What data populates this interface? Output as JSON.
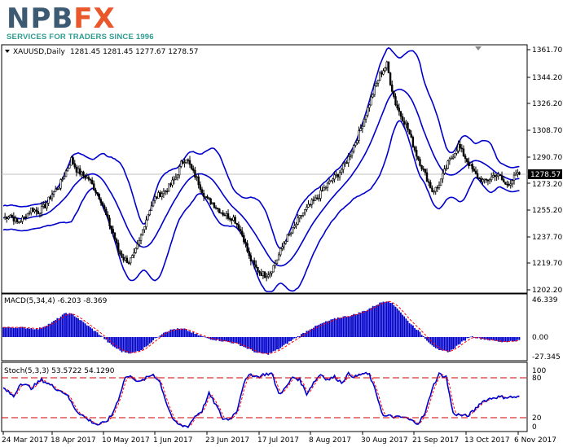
{
  "logo": {
    "brand": "NPBFX",
    "tagline": "SERVICES FOR TRADERS SINCE 1996"
  },
  "header": {
    "symbol": "XAUUSD,Daily",
    "ohlc": "1281.45 1281.45 1277.67 1278.57"
  },
  "price_axis": {
    "ticks": [
      "1361.70",
      "1344.20",
      "1326.20",
      "1308.70",
      "1290.70",
      "1273.20",
      "1255.20",
      "1237.70",
      "1219.70",
      "1202.20"
    ],
    "current": "1278.57"
  },
  "macd": {
    "label": "MACD(5,34,4) -6.203 -8.369",
    "ticks": [
      "46.339",
      "0.00",
      "-27.345"
    ]
  },
  "stoch": {
    "label": "Stoch(5,3,3) 53.5722 54.1290",
    "ticks": [
      "100",
      "80",
      "20",
      "0"
    ]
  },
  "dates": [
    "24 Mar 2017",
    "18 Apr 2017",
    "10 May 2017",
    "1 Jun 2017",
    "23 Jun 2017",
    "17 Jul 2017",
    "8 Aug 2017",
    "30 Aug 2017",
    "21 Sep 2017",
    "13 Oct 2017",
    "6 Nov 2017"
  ],
  "colors": {
    "bands": "#0000cc",
    "macd_hist": "#0000cc",
    "signal": "#ff0000",
    "candle": "#000000",
    "level_line": "#cc0000"
  },
  "chart_data": {
    "type": "candlestick",
    "price_ylim": [
      1202.2,
      1361.7
    ],
    "macd_ylim": [
      -27.345,
      46.339
    ],
    "stoch_ylim": [
      0,
      100
    ],
    "stoch_levels": [
      20,
      80
    ],
    "close_path": [
      [
        0,
        1250
      ],
      [
        4,
        1252
      ],
      [
        8,
        1247
      ],
      [
        12,
        1250
      ],
      [
        16,
        1256
      ],
      [
        20,
        1254
      ],
      [
        24,
        1258
      ],
      [
        28,
        1266
      ],
      [
        32,
        1271
      ],
      [
        36,
        1281
      ],
      [
        39,
        1289
      ],
      [
        42,
        1282
      ],
      [
        46,
        1278
      ],
      [
        49,
        1276
      ],
      [
        53,
        1268
      ],
      [
        56,
        1262
      ],
      [
        60,
        1248
      ],
      [
        63,
        1240
      ],
      [
        66,
        1228
      ],
      [
        69,
        1223
      ],
      [
        72,
        1221
      ],
      [
        75,
        1225
      ],
      [
        78,
        1234
      ],
      [
        81,
        1246
      ],
      [
        84,
        1256
      ],
      [
        87,
        1263
      ],
      [
        90,
        1266
      ],
      [
        93,
        1268
      ],
      [
        96,
        1272
      ],
      [
        99,
        1277
      ],
      [
        102,
        1286
      ],
      [
        105,
        1290
      ],
      [
        108,
        1282
      ],
      [
        111,
        1276
      ],
      [
        114,
        1268
      ],
      [
        117,
        1262
      ],
      [
        120,
        1260
      ],
      [
        123,
        1256
      ],
      [
        126,
        1253
      ],
      [
        129,
        1251
      ],
      [
        132,
        1250
      ],
      [
        135,
        1244
      ],
      [
        138,
        1236
      ],
      [
        141,
        1224
      ],
      [
        144,
        1218
      ],
      [
        147,
        1214
      ],
      [
        150,
        1212
      ],
      [
        153,
        1214
      ],
      [
        156,
        1220
      ],
      [
        159,
        1228
      ],
      [
        162,
        1236
      ],
      [
        165,
        1240
      ],
      [
        168,
        1246
      ],
      [
        171,
        1252
      ],
      [
        174,
        1256
      ],
      [
        177,
        1260
      ],
      [
        180,
        1263
      ],
      [
        183,
        1268
      ],
      [
        186,
        1272
      ],
      [
        189,
        1276
      ],
      [
        192,
        1279
      ],
      [
        195,
        1284
      ],
      [
        198,
        1290
      ],
      [
        201,
        1298
      ],
      [
        204,
        1306
      ],
      [
        207,
        1316
      ],
      [
        210,
        1326
      ],
      [
        213,
        1336
      ],
      [
        216,
        1345
      ],
      [
        219,
        1350
      ],
      [
        220,
        1352
      ],
      [
        222,
        1340
      ],
      [
        225,
        1326
      ],
      [
        228,
        1318
      ],
      [
        231,
        1312
      ],
      [
        234,
        1302
      ],
      [
        237,
        1292
      ],
      [
        240,
        1284
      ],
      [
        243,
        1276
      ],
      [
        246,
        1268
      ],
      [
        249,
        1270
      ],
      [
        252,
        1278
      ],
      [
        255,
        1286
      ],
      [
        258,
        1292
      ],
      [
        261,
        1298
      ],
      [
        264,
        1292
      ],
      [
        267,
        1286
      ],
      [
        270,
        1280
      ],
      [
        273,
        1276
      ],
      [
        276,
        1274
      ],
      [
        279,
        1276
      ],
      [
        282,
        1279
      ],
      [
        285,
        1277
      ],
      [
        288,
        1272
      ],
      [
        291,
        1274
      ],
      [
        294,
        1278
      ],
      [
        296,
        1279
      ]
    ],
    "macd_hist_path": [
      [
        0,
        12
      ],
      [
        10,
        12
      ],
      [
        20,
        10
      ],
      [
        28,
        18
      ],
      [
        36,
        30
      ],
      [
        40,
        28
      ],
      [
        48,
        15
      ],
      [
        56,
        2
      ],
      [
        62,
        -10
      ],
      [
        68,
        -18
      ],
      [
        74,
        -20
      ],
      [
        80,
        -15
      ],
      [
        86,
        -4
      ],
      [
        92,
        6
      ],
      [
        98,
        10
      ],
      [
        104,
        10
      ],
      [
        110,
        4
      ],
      [
        118,
        -2
      ],
      [
        126,
        -5
      ],
      [
        134,
        -8
      ],
      [
        140,
        -14
      ],
      [
        146,
        -20
      ],
      [
        152,
        -21
      ],
      [
        158,
        -15
      ],
      [
        164,
        -6
      ],
      [
        170,
        2
      ],
      [
        176,
        10
      ],
      [
        184,
        18
      ],
      [
        192,
        24
      ],
      [
        200,
        27
      ],
      [
        208,
        33
      ],
      [
        214,
        40
      ],
      [
        218,
        44
      ],
      [
        221,
        45
      ],
      [
        226,
        36
      ],
      [
        232,
        20
      ],
      [
        238,
        8
      ],
      [
        244,
        -6
      ],
      [
        250,
        -17
      ],
      [
        256,
        -18
      ],
      [
        262,
        -8
      ],
      [
        268,
        1
      ],
      [
        274,
        -2
      ],
      [
        280,
        -4
      ],
      [
        286,
        -6
      ],
      [
        292,
        -5
      ],
      [
        296,
        -4
      ]
    ],
    "stoch_path": [
      [
        0,
        70
      ],
      [
        6,
        55
      ],
      [
        10,
        80
      ],
      [
        16,
        70
      ],
      [
        22,
        85
      ],
      [
        30,
        70
      ],
      [
        36,
        60
      ],
      [
        42,
        30
      ],
      [
        48,
        15
      ],
      [
        54,
        5
      ],
      [
        58,
        8
      ],
      [
        62,
        20
      ],
      [
        66,
        50
      ],
      [
        70,
        90
      ],
      [
        74,
        90
      ],
      [
        78,
        80
      ],
      [
        82,
        88
      ],
      [
        86,
        95
      ],
      [
        90,
        80
      ],
      [
        94,
        40
      ],
      [
        98,
        10
      ],
      [
        102,
        3
      ],
      [
        106,
        2
      ],
      [
        110,
        20
      ],
      [
        114,
        30
      ],
      [
        118,
        60
      ],
      [
        122,
        40
      ],
      [
        126,
        15
      ],
      [
        130,
        15
      ],
      [
        134,
        30
      ],
      [
        138,
        80
      ],
      [
        142,
        95
      ],
      [
        146,
        90
      ],
      [
        150,
        95
      ],
      [
        154,
        96
      ],
      [
        158,
        60
      ],
      [
        162,
        70
      ],
      [
        166,
        90
      ],
      [
        170,
        85
      ],
      [
        174,
        60
      ],
      [
        178,
        80
      ],
      [
        182,
        95
      ],
      [
        186,
        85
      ],
      [
        190,
        90
      ],
      [
        194,
        80
      ],
      [
        198,
        95
      ],
      [
        202,
        90
      ],
      [
        206,
        96
      ],
      [
        210,
        94
      ],
      [
        214,
        60
      ],
      [
        218,
        20
      ],
      [
        222,
        20
      ],
      [
        226,
        18
      ],
      [
        230,
        18
      ],
      [
        234,
        12
      ],
      [
        238,
        8
      ],
      [
        242,
        25
      ],
      [
        246,
        70
      ],
      [
        250,
        95
      ],
      [
        254,
        90
      ],
      [
        258,
        25
      ],
      [
        262,
        22
      ],
      [
        266,
        20
      ],
      [
        270,
        30
      ],
      [
        274,
        45
      ],
      [
        278,
        50
      ],
      [
        282,
        54
      ]
    ]
  }
}
